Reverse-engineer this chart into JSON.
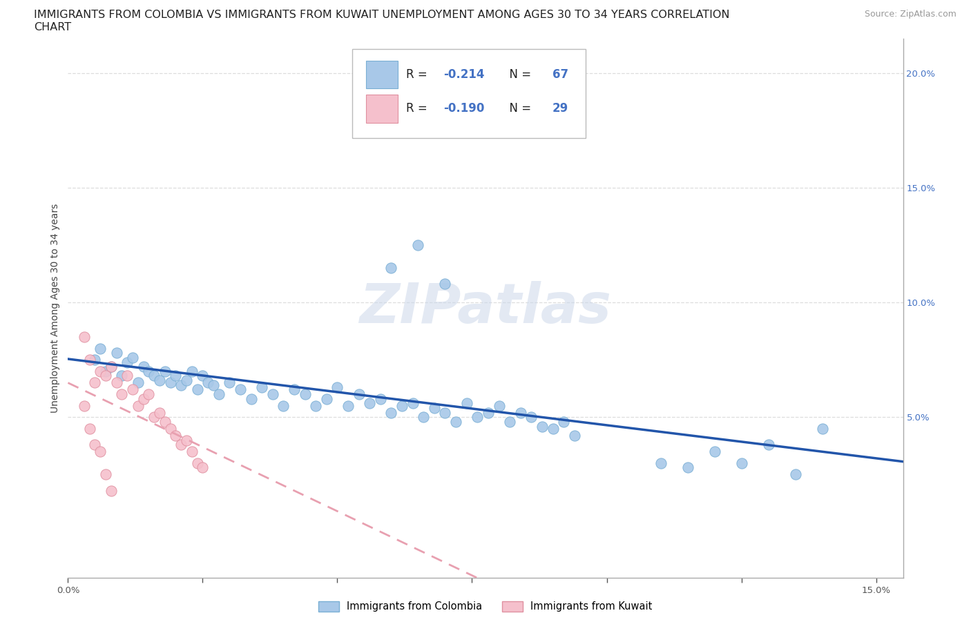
{
  "title_line1": "IMMIGRANTS FROM COLOMBIA VS IMMIGRANTS FROM KUWAIT UNEMPLOYMENT AMONG AGES 30 TO 34 YEARS CORRELATION",
  "title_line2": "CHART",
  "source": "Source: ZipAtlas.com",
  "ylabel": "Unemployment Among Ages 30 to 34 years",
  "xlim": [
    0.0,
    0.155
  ],
  "ylim": [
    -0.02,
    0.215
  ],
  "plot_ylim": [
    -0.02,
    0.215
  ],
  "xtick_positions": [
    0.0,
    0.025,
    0.05,
    0.075,
    0.1,
    0.125,
    0.15
  ],
  "xtick_labels": [
    "0.0%",
    "",
    "",
    "",
    "",
    "",
    "15.0%"
  ],
  "ytick_right_positions": [
    0.05,
    0.1,
    0.15,
    0.2
  ],
  "ytick_right_labels": [
    "5.0%",
    "10.0%",
    "15.0%",
    "20.0%"
  ],
  "watermark": "ZIPatlas",
  "colombia_scatter_color": "#a8c8e8",
  "colombia_edge_color": "#7aafd4",
  "kuwait_scatter_color": "#f5c0cc",
  "kuwait_edge_color": "#e090a0",
  "colombia_line_color": "#2255aa",
  "kuwait_line_color": "#e8a0b0",
  "colombia_R": -0.214,
  "colombia_N": 67,
  "kuwait_R": -0.19,
  "kuwait_N": 29,
  "background_color": "#ffffff",
  "grid_color": "#dddddd",
  "title_fontsize": 11.5,
  "axis_label_fontsize": 10,
  "tick_fontsize": 9.5,
  "legend_fontsize": 12,
  "legend_color_blue": "#4472c4",
  "colombia_x": [
    0.005,
    0.006,
    0.007,
    0.008,
    0.009,
    0.01,
    0.011,
    0.012,
    0.013,
    0.014,
    0.015,
    0.016,
    0.017,
    0.018,
    0.019,
    0.02,
    0.021,
    0.022,
    0.023,
    0.024,
    0.025,
    0.026,
    0.027,
    0.028,
    0.03,
    0.032,
    0.034,
    0.036,
    0.038,
    0.04,
    0.042,
    0.044,
    0.046,
    0.048,
    0.05,
    0.052,
    0.054,
    0.056,
    0.058,
    0.06,
    0.062,
    0.064,
    0.066,
    0.068,
    0.07,
    0.072,
    0.074,
    0.076,
    0.078,
    0.08,
    0.082,
    0.084,
    0.086,
    0.088,
    0.09,
    0.092,
    0.094,
    0.06,
    0.065,
    0.07,
    0.11,
    0.115,
    0.12,
    0.125,
    0.13,
    0.135,
    0.14
  ],
  "colombia_y": [
    0.075,
    0.08,
    0.07,
    0.072,
    0.078,
    0.068,
    0.074,
    0.076,
    0.065,
    0.072,
    0.07,
    0.068,
    0.066,
    0.07,
    0.065,
    0.068,
    0.064,
    0.066,
    0.07,
    0.062,
    0.068,
    0.065,
    0.064,
    0.06,
    0.065,
    0.062,
    0.058,
    0.063,
    0.06,
    0.055,
    0.062,
    0.06,
    0.055,
    0.058,
    0.063,
    0.055,
    0.06,
    0.056,
    0.058,
    0.052,
    0.055,
    0.056,
    0.05,
    0.054,
    0.052,
    0.048,
    0.056,
    0.05,
    0.052,
    0.055,
    0.048,
    0.052,
    0.05,
    0.046,
    0.045,
    0.048,
    0.042,
    0.115,
    0.125,
    0.108,
    0.03,
    0.028,
    0.035,
    0.03,
    0.038,
    0.025,
    0.045
  ],
  "kuwait_x": [
    0.003,
    0.004,
    0.005,
    0.006,
    0.007,
    0.008,
    0.009,
    0.01,
    0.011,
    0.012,
    0.013,
    0.014,
    0.015,
    0.016,
    0.017,
    0.018,
    0.019,
    0.02,
    0.021,
    0.022,
    0.023,
    0.024,
    0.025,
    0.003,
    0.004,
    0.005,
    0.006,
    0.007,
    0.008
  ],
  "kuwait_y": [
    0.085,
    0.075,
    0.065,
    0.07,
    0.068,
    0.072,
    0.065,
    0.06,
    0.068,
    0.062,
    0.055,
    0.058,
    0.06,
    0.05,
    0.052,
    0.048,
    0.045,
    0.042,
    0.038,
    0.04,
    0.035,
    0.03,
    0.028,
    0.055,
    0.045,
    0.038,
    0.035,
    0.025,
    0.018
  ]
}
